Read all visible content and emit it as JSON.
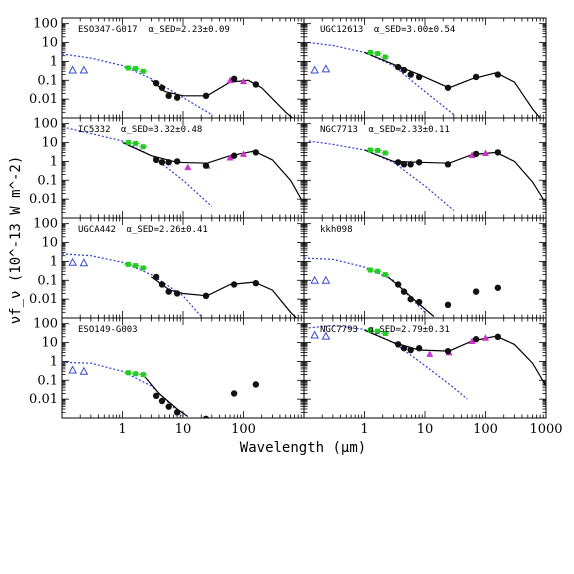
{
  "chart_data": {
    "type": "scatter",
    "xlabel": "Wavelength (μm)",
    "ylabel": "νf_ν (10^-13 W m^-2)",
    "xscale": "log",
    "yscale": "log",
    "xlim": [
      0.1,
      1000
    ],
    "ylim": [
      0.001,
      200
    ],
    "x_tick_labels": [
      "1",
      "10",
      "100",
      "1000"
    ],
    "y_tick_labels": [
      "100",
      "10",
      "1",
      "0.1",
      "0.01"
    ],
    "colors": {
      "uv": "#3a4ecf",
      "nir": "#22cc22",
      "mir": "#111111",
      "iras": "#cc33cc",
      "stellar": "#2b3dd6",
      "model": "#000000",
      "pah": "#8b1a1a"
    },
    "panels": [
      {
        "name": "ESO347-G017",
        "alpha_text": "α_SED=2.23±0.09",
        "uv": [
          [
            0.15,
            0.35
          ],
          [
            0.23,
            0.35
          ]
        ],
        "nir": [
          [
            1.25,
            0.45
          ],
          [
            1.65,
            0.42
          ],
          [
            2.2,
            0.3
          ]
        ],
        "mir": [
          [
            3.6,
            0.07
          ],
          [
            4.5,
            0.04
          ],
          [
            5.8,
            0.015
          ],
          [
            8,
            0.012
          ],
          [
            24,
            0.015
          ],
          [
            70,
            0.12
          ],
          [
            160,
            0.06
          ]
        ],
        "iras": [
          [
            60,
            0.1
          ],
          [
            100,
            0.09
          ]
        ],
        "stellar": [
          [
            0.1,
            2.5
          ],
          [
            0.3,
            1.5
          ],
          [
            1,
            0.6
          ],
          [
            3,
            0.12
          ],
          [
            10,
            0.012
          ],
          [
            30,
            0.0015
          ]
        ],
        "model": [
          [
            3,
            0.1
          ],
          [
            5,
            0.025
          ],
          [
            10,
            0.015
          ],
          [
            25,
            0.015
          ],
          [
            60,
            0.08
          ],
          [
            120,
            0.1
          ],
          [
            200,
            0.04
          ],
          [
            500,
            0.002
          ],
          [
            700,
            0.0008
          ]
        ]
      },
      {
        "name": "UGC12613",
        "alpha_text": "α_SED=3.00±0.54",
        "uv": [
          [
            0.15,
            0.35
          ],
          [
            0.23,
            0.4
          ]
        ],
        "nir": [
          [
            1.25,
            3
          ],
          [
            1.65,
            2.6
          ],
          [
            2.2,
            1.7
          ]
        ],
        "mir": [
          [
            3.6,
            0.5
          ],
          [
            4.5,
            0.35
          ],
          [
            5.8,
            0.2
          ],
          [
            8,
            0.15
          ],
          [
            24,
            0.04
          ],
          [
            70,
            0.15
          ],
          [
            160,
            0.2
          ]
        ],
        "iras": [],
        "stellar": [
          [
            0.12,
            10
          ],
          [
            0.3,
            7
          ],
          [
            1,
            3
          ],
          [
            3,
            0.6
          ],
          [
            10,
            0.025
          ],
          [
            30,
            0.0015
          ]
        ],
        "model": [
          [
            1,
            3
          ],
          [
            3,
            0.7
          ],
          [
            8,
            0.2
          ],
          [
            25,
            0.04
          ],
          [
            60,
            0.12
          ],
          [
            150,
            0.25
          ],
          [
            300,
            0.08
          ],
          [
            600,
            0.003
          ],
          [
            800,
            0.001
          ]
        ]
      },
      {
        "name": "IC5332",
        "alpha_text": "α_SED=3.32±0.48",
        "uv": [],
        "nir": [
          [
            1.25,
            10
          ],
          [
            1.65,
            9
          ],
          [
            2.2,
            6
          ]
        ],
        "mir": [
          [
            3.6,
            1.2
          ],
          [
            4.5,
            0.9
          ],
          [
            5.8,
            0.9
          ],
          [
            8,
            1
          ],
          [
            24,
            0.6
          ],
          [
            70,
            2
          ],
          [
            160,
            3
          ]
        ],
        "iras": [
          [
            12,
            0.5
          ],
          [
            25,
            0.6
          ],
          [
            60,
            1.6
          ],
          [
            100,
            2.5
          ]
        ],
        "stellar": [
          [
            0.12,
            60
          ],
          [
            0.3,
            30
          ],
          [
            1,
            12
          ],
          [
            3,
            2
          ],
          [
            10,
            0.1
          ],
          [
            30,
            0.004
          ]
        ],
        "model": [
          [
            1,
            10
          ],
          [
            3,
            2
          ],
          [
            8,
            0.9
          ],
          [
            25,
            0.8
          ],
          [
            60,
            2
          ],
          [
            150,
            3.5
          ],
          [
            300,
            1.2
          ],
          [
            600,
            0.1
          ],
          [
            900,
            0.01
          ]
        ]
      },
      {
        "name": "NGC7713",
        "alpha_text": "α_SED=2.33±0.11",
        "uv": [],
        "nir": [
          [
            1.25,
            4
          ],
          [
            1.65,
            3.8
          ],
          [
            2.2,
            2.8
          ]
        ],
        "mir": [
          [
            3.6,
            0.9
          ],
          [
            4.5,
            0.7
          ],
          [
            5.8,
            0.7
          ],
          [
            8,
            0.9
          ],
          [
            24,
            0.7
          ],
          [
            70,
            2.5
          ],
          [
            160,
            3
          ]
        ],
        "iras": [
          [
            60,
            2.2
          ],
          [
            100,
            2.8
          ]
        ],
        "stellar": [
          [
            0.12,
            12
          ],
          [
            0.3,
            8
          ],
          [
            1,
            4
          ],
          [
            3,
            0.9
          ],
          [
            10,
            0.05
          ],
          [
            30,
            0.0025
          ]
        ],
        "model": [
          [
            1,
            4
          ],
          [
            3,
            1
          ],
          [
            8,
            0.9
          ],
          [
            25,
            0.8
          ],
          [
            60,
            2.3
          ],
          [
            150,
            3
          ],
          [
            300,
            1
          ],
          [
            600,
            0.08
          ],
          [
            900,
            0.01
          ]
        ]
      },
      {
        "name": "UGCA442",
        "alpha_text": "α_SED=2.26±0.41",
        "uv": [
          [
            0.15,
            0.9
          ],
          [
            0.23,
            0.85
          ]
        ],
        "nir": [
          [
            1.25,
            0.7
          ],
          [
            1.65,
            0.6
          ],
          [
            2.2,
            0.45
          ]
        ],
        "mir": [
          [
            3.6,
            0.15
          ],
          [
            4.5,
            0.06
          ],
          [
            5.8,
            0.025
          ],
          [
            8,
            0.02
          ],
          [
            24,
            0.015
          ],
          [
            70,
            0.06
          ],
          [
            160,
            0.07
          ]
        ],
        "iras": [],
        "stellar": [
          [
            0.1,
            2.5
          ],
          [
            0.3,
            2
          ],
          [
            1,
            0.9
          ],
          [
            3,
            0.2
          ],
          [
            10,
            0.015
          ],
          [
            20,
            0.0012
          ]
        ],
        "model": [
          [
            3,
            0.15
          ],
          [
            6,
            0.03
          ],
          [
            10,
            0.02
          ],
          [
            25,
            0.015
          ],
          [
            60,
            0.06
          ],
          [
            150,
            0.08
          ],
          [
            300,
            0.03
          ],
          [
            600,
            0.002
          ],
          [
            800,
            0.0008
          ]
        ]
      },
      {
        "name": "kkh098",
        "alpha_text": "",
        "uv": [
          [
            0.15,
            0.1
          ],
          [
            0.23,
            0.1
          ]
        ],
        "nir": [
          [
            1.25,
            0.35
          ],
          [
            1.65,
            0.3
          ],
          [
            2.2,
            0.2
          ]
        ],
        "mir": [
          [
            3.6,
            0.06
          ],
          [
            4.5,
            0.025
          ],
          [
            5.8,
            0.01
          ],
          [
            8,
            0.007
          ],
          [
            24,
            0.005
          ],
          [
            70,
            0.025
          ],
          [
            160,
            0.04
          ]
        ],
        "iras": [],
        "stellar": [
          [
            0.1,
            1.5
          ],
          [
            0.3,
            1.3
          ],
          [
            1,
            0.5
          ],
          [
            3,
            0.1
          ],
          [
            10,
            0.002
          ]
        ],
        "model": [
          [
            2.2,
            0.2
          ],
          [
            4,
            0.04
          ],
          [
            7,
            0.008
          ],
          [
            10,
            0.003
          ],
          [
            14,
            0.0012
          ]
        ]
      },
      {
        "name": "ESO149-G003",
        "alpha_text": "",
        "uv": [
          [
            0.15,
            0.35
          ],
          [
            0.23,
            0.3
          ]
        ],
        "nir": [
          [
            1.25,
            0.25
          ],
          [
            1.65,
            0.22
          ],
          [
            2.2,
            0.2
          ]
        ],
        "mir": [
          [
            3.6,
            0.015
          ],
          [
            4.5,
            0.008
          ],
          [
            5.8,
            0.004
          ],
          [
            8,
            0.002
          ],
          [
            24,
            0.0009
          ],
          [
            70,
            0.02
          ],
          [
            160,
            0.06
          ]
        ],
        "iras": [],
        "stellar": [
          [
            0.1,
            0.9
          ],
          [
            0.3,
            0.8
          ],
          [
            1,
            0.3
          ],
          [
            3,
            0.05
          ],
          [
            10,
            0.0012
          ]
        ],
        "model": [
          [
            2.2,
            0.2
          ],
          [
            4,
            0.02
          ],
          [
            8,
            0.003
          ],
          [
            12,
            0.0012
          ]
        ]
      },
      {
        "name": "NGC7793",
        "alpha_text": "α_SED=2.79±0.31",
        "uv": [
          [
            0.15,
            25
          ],
          [
            0.23,
            22
          ]
        ],
        "nir": [
          [
            1.25,
            45
          ],
          [
            1.65,
            40
          ],
          [
            2.2,
            30
          ]
        ],
        "mir": [
          [
            3.6,
            8
          ],
          [
            4.5,
            5
          ],
          [
            5.8,
            4
          ],
          [
            8,
            5
          ],
          [
            24,
            3.5
          ],
          [
            70,
            15
          ],
          [
            160,
            20
          ]
        ],
        "iras": [
          [
            12,
            2.5
          ],
          [
            25,
            3
          ],
          [
            60,
            12
          ],
          [
            100,
            18
          ]
        ],
        "stellar": [
          [
            0.12,
            60
          ],
          [
            0.3,
            80
          ],
          [
            1,
            50
          ],
          [
            3,
            10
          ],
          [
            10,
            0.6
          ],
          [
            30,
            0.04
          ],
          [
            50,
            0.01
          ]
        ],
        "model": [
          [
            1,
            45
          ],
          [
            3,
            10
          ],
          [
            8,
            4
          ],
          [
            25,
            3.5
          ],
          [
            60,
            12
          ],
          [
            150,
            22
          ],
          [
            300,
            8
          ],
          [
            600,
            0.8
          ],
          [
            1000,
            0.05
          ]
        ]
      }
    ]
  }
}
